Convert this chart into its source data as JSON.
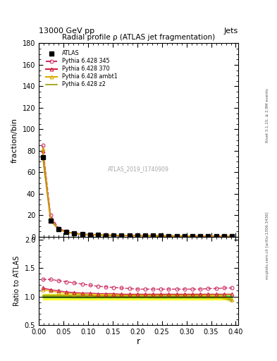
{
  "title_top": "13000 GeV pp",
  "title_top_right": "Jets",
  "right_label": "Rivet 3.1.10, ≥ 2.8M events",
  "right_label2": "mcplots.cern.ch [arXiv:1306.3436]",
  "watermark": "ATLAS_2019_I1740909",
  "main_title": "Radial profile ρ (ATLAS jet fragmentation)",
  "ylabel_main": "fraction/bin",
  "ylabel_ratio": "Ratio to ATLAS",
  "xlabel": "r",
  "ylim_main": [
    0,
    180
  ],
  "ylim_ratio": [
    0.5,
    2.05
  ],
  "yticks_main": [
    0,
    20,
    40,
    60,
    80,
    100,
    120,
    140,
    160,
    180
  ],
  "yticks_ratio": [
    0.5,
    1.0,
    1.5,
    2.0
  ],
  "xlim": [
    0.0,
    0.4
  ],
  "r_values": [
    0.008,
    0.024,
    0.04,
    0.056,
    0.072,
    0.088,
    0.104,
    0.12,
    0.136,
    0.152,
    0.168,
    0.184,
    0.2,
    0.216,
    0.232,
    0.248,
    0.264,
    0.28,
    0.296,
    0.312,
    0.328,
    0.344,
    0.36,
    0.376,
    0.392
  ],
  "atlas_values": [
    74,
    15,
    7,
    4.5,
    3.2,
    2.5,
    2.0,
    1.8,
    1.6,
    1.5,
    1.4,
    1.3,
    1.2,
    1.1,
    1.05,
    1.0,
    0.95,
    0.9,
    0.85,
    0.82,
    0.78,
    0.75,
    0.72,
    0.68,
    0.65
  ],
  "pythia345_values": [
    85,
    20,
    8,
    5.0,
    3.5,
    2.7,
    2.1,
    1.85,
    1.65,
    1.52,
    1.41,
    1.32,
    1.22,
    1.13,
    1.07,
    1.02,
    0.97,
    0.93,
    0.88,
    0.84,
    0.8,
    0.77,
    0.74,
    0.7,
    0.67
  ],
  "pythia370_values": [
    80,
    17,
    7.5,
    4.7,
    3.3,
    2.55,
    2.05,
    1.82,
    1.62,
    1.51,
    1.4,
    1.31,
    1.21,
    1.12,
    1.06,
    1.01,
    0.96,
    0.92,
    0.87,
    0.83,
    0.79,
    0.76,
    0.73,
    0.69,
    0.66
  ],
  "pythia_ambt1_values": [
    82,
    16.5,
    7.3,
    4.6,
    3.25,
    2.52,
    2.02,
    1.8,
    1.61,
    1.5,
    1.39,
    1.3,
    1.2,
    1.11,
    1.055,
    1.005,
    0.955,
    0.915,
    0.865,
    0.825,
    0.785,
    0.755,
    0.725,
    0.685,
    0.655
  ],
  "pythia_z2_values": [
    74.5,
    15.2,
    7.1,
    4.52,
    3.21,
    2.51,
    2.01,
    1.81,
    1.61,
    1.51,
    1.41,
    1.31,
    1.21,
    1.11,
    1.05,
    1.0,
    0.95,
    0.905,
    0.855,
    0.82,
    0.78,
    0.75,
    0.72,
    0.682,
    0.652
  ],
  "atlas_color": "black",
  "pythia345_color": "#cc3366",
  "pythia370_color": "#cc2244",
  "ambt1_color": "#ddaa00",
  "z2_color": "#999900",
  "ratio_345": [
    1.3,
    1.3,
    1.28,
    1.26,
    1.24,
    1.22,
    1.2,
    1.18,
    1.17,
    1.16,
    1.15,
    1.14,
    1.13,
    1.13,
    1.13,
    1.13,
    1.13,
    1.13,
    1.13,
    1.13,
    1.13,
    1.14,
    1.14,
    1.15,
    1.15
  ],
  "ratio_370": [
    1.15,
    1.12,
    1.1,
    1.08,
    1.07,
    1.06,
    1.06,
    1.05,
    1.05,
    1.05,
    1.04,
    1.04,
    1.04,
    1.04,
    1.04,
    1.04,
    1.04,
    1.04,
    1.04,
    1.04,
    1.04,
    1.04,
    1.04,
    1.04,
    1.04
  ],
  "ratio_ambt1": [
    1.12,
    1.1,
    1.07,
    1.06,
    1.05,
    1.04,
    1.03,
    1.02,
    1.02,
    1.02,
    1.02,
    1.02,
    1.02,
    1.02,
    1.02,
    1.02,
    1.02,
    1.02,
    1.02,
    1.02,
    1.02,
    1.01,
    1.01,
    1.0,
    0.95
  ],
  "ratio_z2": [
    1.01,
    1.01,
    1.01,
    1.01,
    1.005,
    1.005,
    1.005,
    1.005,
    1.005,
    1.005,
    1.005,
    1.005,
    1.005,
    1.005,
    1.0,
    1.0,
    1.0,
    1.0,
    1.0,
    1.0,
    1.0,
    0.998,
    0.998,
    0.996,
    0.93
  ]
}
